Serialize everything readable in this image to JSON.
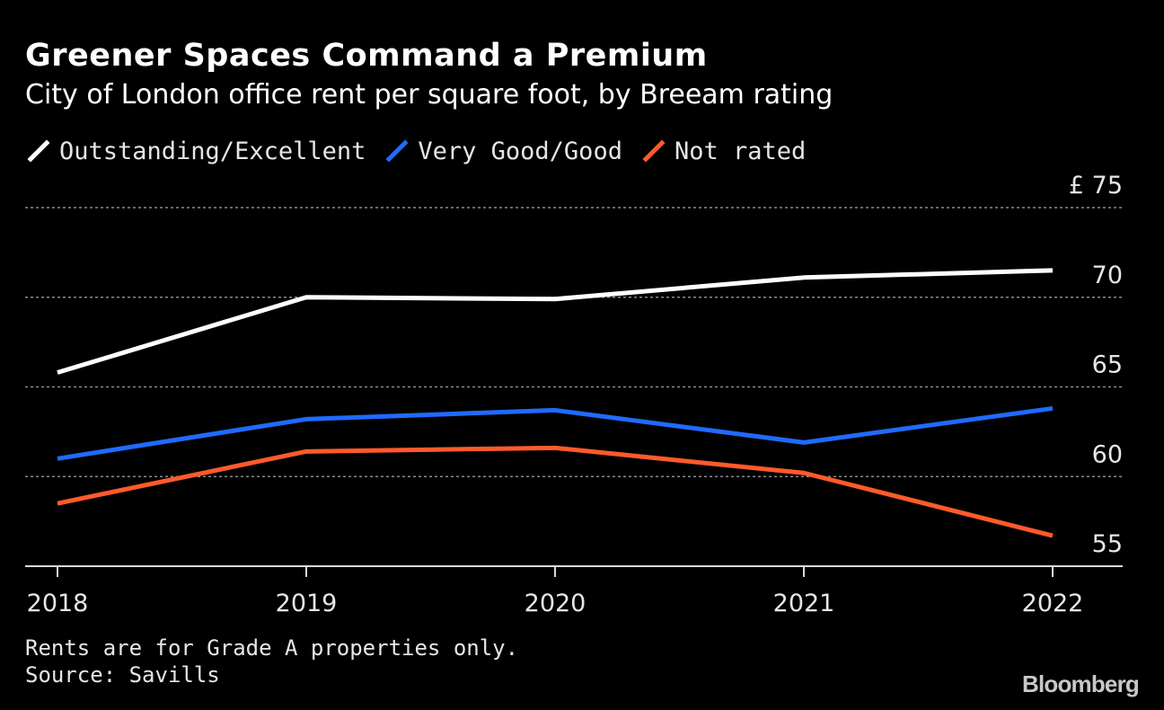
{
  "chart_data": {
    "type": "line",
    "title": "Greener Spaces Command a Premium",
    "subtitle": "City of London office rent per square foot, by Breeam rating",
    "categories": [
      "2018",
      "2019",
      "2020",
      "2021",
      "2022"
    ],
    "series": [
      {
        "name": "Outstanding/Excellent",
        "color": "#ffffff",
        "values": [
          65.8,
          70.0,
          69.9,
          71.1,
          71.5
        ]
      },
      {
        "name": "Very Good/Good",
        "color": "#1f6bff",
        "values": [
          61.0,
          63.2,
          63.7,
          61.9,
          63.8
        ]
      },
      {
        "name": "Not rated",
        "color": "#ff5a2b",
        "values": [
          58.5,
          61.4,
          61.6,
          60.2,
          56.7
        ]
      }
    ],
    "y_ticks": [
      {
        "value": 75,
        "label": "£ 75"
      },
      {
        "value": 70,
        "label": "70"
      },
      {
        "value": 65,
        "label": "65"
      },
      {
        "value": 60,
        "label": "60"
      },
      {
        "value": 55,
        "label": "55"
      }
    ],
    "ylim": [
      55,
      75
    ],
    "xlabel": "",
    "ylabel": "",
    "grid": true,
    "y_axis_side": "right",
    "legend_position": "top-left"
  },
  "footnote": {
    "note": "Rents are for Grade A properties only.",
    "source": "Source: Savills"
  },
  "brand": "Bloomberg"
}
